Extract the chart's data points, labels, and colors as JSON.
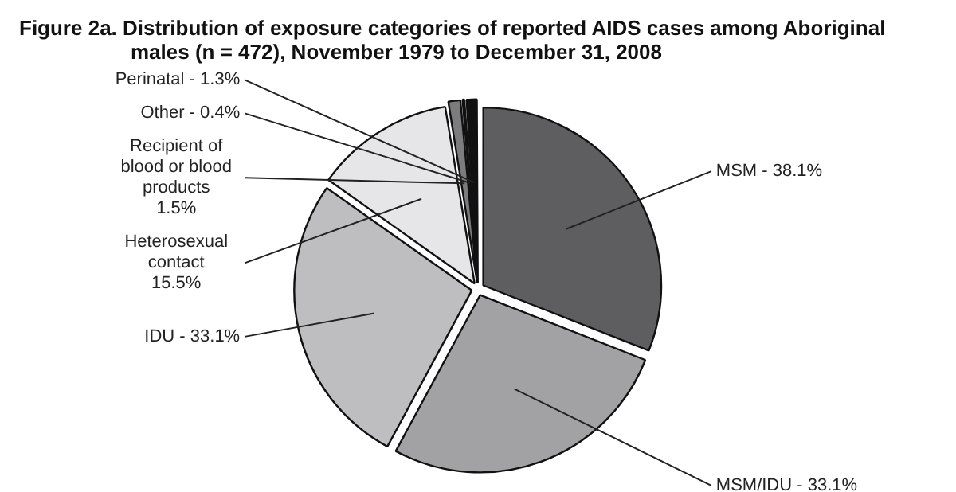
{
  "chart_data": {
    "type": "pie",
    "title": "Figure 2a.  Distribution of exposure categories of reported AIDS cases among Aboriginal males (n = 472), November 1979 to December 31, 2008",
    "categories": [
      "MSM",
      "MSM/IDU",
      "IDU",
      "Heterosexual contact",
      "Recipient of blood or blood products",
      "Other",
      "Perinatal"
    ],
    "values": [
      38.1,
      33.1,
      33.1,
      15.5,
      1.5,
      0.4,
      1.3
    ],
    "value_labels": [
      "38.1%",
      "33.1%",
      "33.1%",
      "15.5%",
      "1.5%",
      "0.4%",
      "1.3%"
    ],
    "colors": [
      "#5e5e60",
      "#a2a2a4",
      "#bebec0",
      "#e6e6e8",
      "#7c7c7e",
      "#ffffff",
      "#111111"
    ],
    "legend": false
  }
}
